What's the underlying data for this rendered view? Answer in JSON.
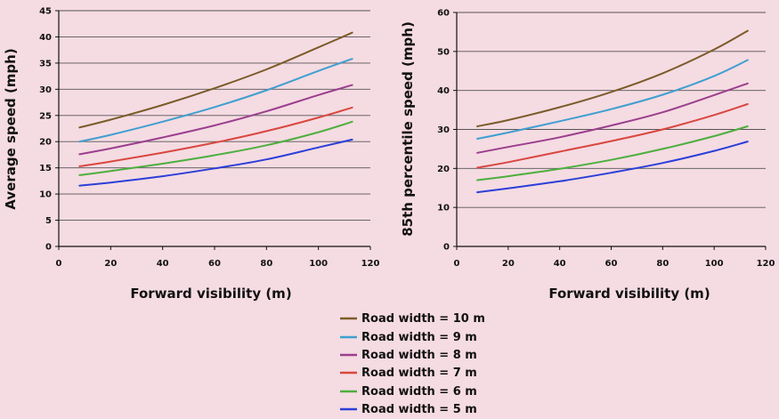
{
  "legend": [
    {
      "label": "Road width = 10 m",
      "color": "#7a5c2a"
    },
    {
      "label": "Road width = 9 m",
      "color": "#3f9fd0"
    },
    {
      "label": "Road width = 8 m",
      "color": "#9b3f8e"
    },
    {
      "label": "Road width = 7 m",
      "color": "#d9473f"
    },
    {
      "label": "Road width = 6 m",
      "color": "#4caf3e"
    },
    {
      "label": "Road width = 5 m",
      "color": "#2b3fd8"
    }
  ],
  "chart_data": [
    {
      "type": "line",
      "title": "",
      "xlabel": "Forward visibility (m)",
      "ylabel": "Average speed (mph)",
      "xlim": [
        0,
        120
      ],
      "ylim": [
        0,
        45
      ],
      "xticks": [
        0,
        20,
        40,
        60,
        80,
        100,
        120
      ],
      "yticks": [
        0,
        5,
        10,
        15,
        20,
        25,
        30,
        35,
        40,
        45
      ],
      "grid": "horizontal",
      "x": [
        8,
        20,
        40,
        60,
        80,
        100,
        113
      ],
      "series": [
        {
          "name": "Road width = 10 m",
          "values": [
            22.7,
            24.2,
            27.0,
            30.2,
            33.8,
            38.0,
            40.8
          ]
        },
        {
          "name": "Road width = 9 m",
          "values": [
            20.0,
            21.3,
            23.8,
            26.6,
            29.8,
            33.5,
            35.8
          ]
        },
        {
          "name": "Road width = 8 m",
          "values": [
            17.6,
            18.7,
            20.8,
            23.1,
            25.8,
            28.9,
            30.8
          ]
        },
        {
          "name": "Road width = 7 m",
          "values": [
            15.3,
            16.2,
            17.9,
            19.8,
            22.0,
            24.6,
            26.5
          ]
        },
        {
          "name": "Road width = 6 m",
          "values": [
            13.6,
            14.4,
            15.8,
            17.4,
            19.3,
            21.8,
            23.8
          ]
        },
        {
          "name": "Road width = 5 m",
          "values": [
            11.6,
            12.2,
            13.4,
            14.9,
            16.6,
            18.9,
            20.4
          ]
        }
      ]
    },
    {
      "type": "line",
      "title": "",
      "xlabel": "Forward visibility (m)",
      "ylabel": "85th percentile speed (mph)",
      "xlim": [
        0,
        120
      ],
      "ylim": [
        0,
        60
      ],
      "xticks": [
        0,
        20,
        40,
        60,
        80,
        100,
        120
      ],
      "yticks": [
        0,
        10,
        20,
        30,
        40,
        50,
        60
      ],
      "grid": "horizontal",
      "x": [
        8,
        20,
        40,
        60,
        80,
        100,
        113
      ],
      "series": [
        {
          "name": "Road width = 10 m",
          "values": [
            30.8,
            32.4,
            35.7,
            39.6,
            44.4,
            50.5,
            55.3
          ]
        },
        {
          "name": "Road width = 9 m",
          "values": [
            27.6,
            29.2,
            32.1,
            35.2,
            38.9,
            43.7,
            47.8
          ]
        },
        {
          "name": "Road width = 8 m",
          "values": [
            24.0,
            25.5,
            28.0,
            31.0,
            34.4,
            38.8,
            41.8
          ]
        },
        {
          "name": "Road width = 7 m",
          "values": [
            20.2,
            21.6,
            24.3,
            27.0,
            30.0,
            33.7,
            36.5
          ]
        },
        {
          "name": "Road width = 6 m",
          "values": [
            17.0,
            18.0,
            19.9,
            22.2,
            25.0,
            28.3,
            30.8
          ]
        },
        {
          "name": "Road width = 5 m",
          "values": [
            13.9,
            14.9,
            16.7,
            18.9,
            21.4,
            24.5,
            26.9
          ]
        }
      ]
    }
  ]
}
